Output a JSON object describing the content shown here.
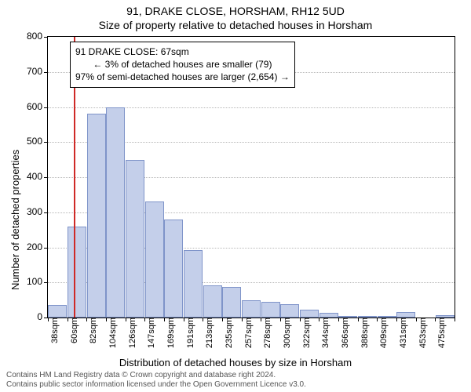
{
  "titles": {
    "line1": "91, DRAKE CLOSE, HORSHAM, RH12 5UD",
    "line2": "Size of property relative to detached houses in Horsham"
  },
  "axes": {
    "ylabel": "Number of detached properties",
    "xlabel": "Distribution of detached houses by size in Horsham",
    "ylim": [
      0,
      800
    ],
    "ytick_step": 100,
    "ytick_fontsize": 12,
    "xtick_fontsize": 11,
    "grid_color": "#b8b8b8"
  },
  "chart": {
    "type": "histogram",
    "bar_fill": "#c4cfea",
    "bar_stroke": "#7f94c9",
    "background": "#ffffff",
    "categories": [
      "38sqm",
      "60sqm",
      "82sqm",
      "104sqm",
      "126sqm",
      "147sqm",
      "169sqm",
      "191sqm",
      "213sqm",
      "235sqm",
      "257sqm",
      "278sqm",
      "300sqm",
      "322sqm",
      "344sqm",
      "366sqm",
      "388sqm",
      "409sqm",
      "431sqm",
      "453sqm",
      "475sqm"
    ],
    "values": [
      35,
      260,
      580,
      600,
      450,
      330,
      280,
      192,
      92,
      88,
      50,
      45,
      38,
      22,
      14,
      5,
      4,
      2,
      16,
      0,
      6
    ]
  },
  "marker": {
    "value_sqm": 67,
    "color": "#cf2a27",
    "box": {
      "line1": "91 DRAKE CLOSE: 67sqm",
      "line2": "← 3% of detached houses are smaller (79)",
      "line3": "97% of semi-detached houses are larger (2,654) →"
    }
  },
  "footer": {
    "line1": "Contains HM Land Registry data © Crown copyright and database right 2024.",
    "line2": "Contains public sector information licensed under the Open Government Licence v3.0."
  },
  "style": {
    "title_fontsize": 14,
    "label_fontsize": 13,
    "footer_fontsize": 10,
    "box_fontsize": 12
  }
}
